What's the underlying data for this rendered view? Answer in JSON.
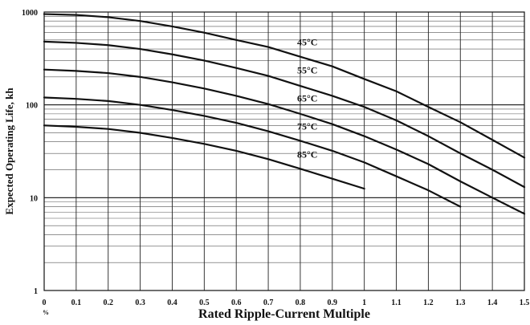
{
  "chart_data": {
    "type": "line",
    "title": "",
    "xlabel": "Rated Ripple-Current Multiple",
    "ylabel": "Expected Operating Life, kh",
    "xlim": [
      0,
      1.5
    ],
    "ylim": [
      1,
      1000
    ],
    "y_scale": "log",
    "grid": true,
    "legend": "inline labels",
    "x_ticks": [
      "0",
      "0.1",
      "0.2",
      "0.3",
      "0.4",
      "0.5",
      "0.6",
      "0.7",
      "0.8",
      "0.9",
      "1",
      "1.1",
      "1.2",
      "1.3",
      "1.4",
      "1.5"
    ],
    "y_ticks": [
      {
        "value": 1,
        "label": "1"
      },
      {
        "value": 10,
        "label": "10"
      },
      {
        "value": 100,
        "label": "100"
      },
      {
        "value": 1000,
        "label": "1000"
      }
    ],
    "x_unit_mark": "%",
    "series": [
      {
        "name": "45°C",
        "x": [
          0,
          0.1,
          0.2,
          0.3,
          0.4,
          0.5,
          0.6,
          0.7,
          0.8,
          0.9,
          1.0,
          1.1,
          1.2,
          1.3,
          1.4,
          1.5
        ],
        "values": [
          950,
          930,
          880,
          800,
          700,
          600,
          500,
          420,
          330,
          260,
          190,
          140,
          95,
          65,
          42,
          27
        ]
      },
      {
        "name": "55°C",
        "x": [
          0,
          0.1,
          0.2,
          0.3,
          0.4,
          0.5,
          0.6,
          0.7,
          0.8,
          0.9,
          1.0,
          1.1,
          1.2,
          1.3,
          1.4,
          1.5
        ],
        "values": [
          480,
          465,
          440,
          400,
          350,
          300,
          250,
          205,
          160,
          125,
          95,
          68,
          46,
          30,
          20,
          13
        ]
      },
      {
        "name": "65°C",
        "x": [
          0,
          0.1,
          0.2,
          0.3,
          0.4,
          0.5,
          0.6,
          0.7,
          0.8,
          0.9,
          1.0,
          1.1,
          1.2,
          1.3,
          1.4,
          1.5
        ],
        "values": [
          240,
          232,
          220,
          200,
          175,
          150,
          125,
          102,
          80,
          62,
          46,
          33,
          23,
          15,
          10,
          6.7
        ]
      },
      {
        "name": "75°C",
        "x": [
          0,
          0.1,
          0.2,
          0.3,
          0.4,
          0.5,
          0.6,
          0.7,
          0.8,
          0.9,
          1.0,
          1.1,
          1.2,
          1.3
        ],
        "values": [
          120,
          116,
          110,
          100,
          88,
          76,
          64,
          52,
          41,
          32,
          24,
          17,
          12,
          8
        ]
      },
      {
        "name": "85°C",
        "x": [
          0,
          0.1,
          0.2,
          0.3,
          0.4,
          0.5,
          0.6,
          0.7,
          0.8,
          0.9,
          1.0
        ],
        "values": [
          60,
          58,
          55,
          50,
          44,
          38,
          32,
          26,
          20.5,
          16,
          12.5
        ]
      }
    ],
    "label_positions": [
      {
        "series": "45°C",
        "x": 0.78,
        "y": 420
      },
      {
        "series": "55°C",
        "x": 0.78,
        "y": 210
      },
      {
        "series": "65°C",
        "x": 0.78,
        "y": 104
      },
      {
        "series": "75°C",
        "x": 0.78,
        "y": 52
      },
      {
        "series": "85°C",
        "x": 0.78,
        "y": 26
      }
    ]
  }
}
